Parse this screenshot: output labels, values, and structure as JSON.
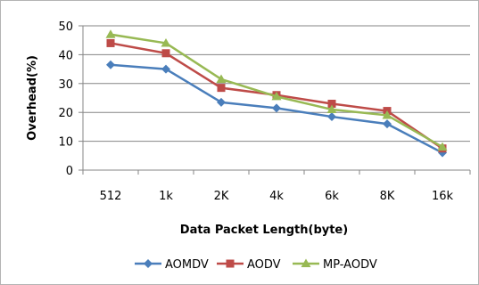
{
  "chart_data": {
    "type": "line",
    "categories": [
      "512",
      "1k",
      "2K",
      "4k",
      "6k",
      "8K",
      "16k"
    ],
    "xlabel": "Data Packet Length(byte)",
    "ylabel": "Overhead(%)",
    "ylim": [
      0,
      50
    ],
    "yticks": [
      0,
      10,
      20,
      30,
      40,
      50
    ],
    "grid": true,
    "legend_position": "bottom",
    "series": [
      {
        "name": "AOMDV",
        "color": "#4a7ebb",
        "marker": "diamond",
        "values": [
          36.5,
          35,
          23.5,
          21.5,
          18.5,
          16,
          6
        ]
      },
      {
        "name": "AODV",
        "color": "#be4b48",
        "marker": "square",
        "values": [
          44,
          40.5,
          28.5,
          26,
          23,
          20.5,
          7.5
        ]
      },
      {
        "name": "MP-AODV",
        "color": "#98b954",
        "marker": "triangle",
        "values": [
          47,
          44,
          31.5,
          25.5,
          21,
          19,
          8
        ]
      }
    ]
  }
}
